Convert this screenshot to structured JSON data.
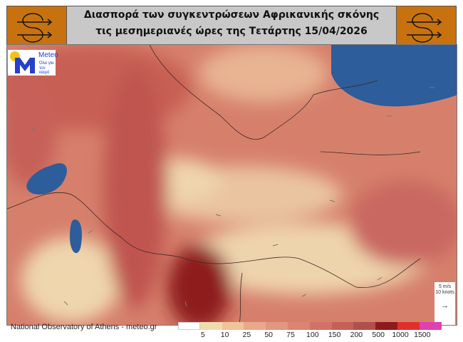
{
  "header": {
    "title_line1": "Διασπορά των συγκεντρώσεων Αφρικανικής σκόνης",
    "title_line2": "τις μεσημεριανές ώρες της Τετάρτης 15/04/2026",
    "icon": "dust-wind-icon",
    "icon_bg": "#c8720f"
  },
  "logo": {
    "name": "Meteo",
    "tagline1": "Όλα για",
    "tagline2": "τον καιρό"
  },
  "wind_scale": {
    "line1": "5 m/s",
    "line2": "10 knots",
    "arrow": "→"
  },
  "footer": {
    "credit": "National Observatory of Athens - meteo.gr"
  },
  "legend": {
    "colors": [
      "#ffffff",
      "#efdcae",
      "#f1c39a",
      "#eaa88a",
      "#e29780",
      "#db8470",
      "#d27168",
      "#c46058",
      "#b0504c",
      "#8e1b1c",
      "#e0302a",
      "#e040b0"
    ],
    "labels": [
      "5",
      "10",
      "25",
      "50",
      "75",
      "100",
      "150",
      "200",
      "500",
      "1000",
      "1500"
    ]
  }
}
